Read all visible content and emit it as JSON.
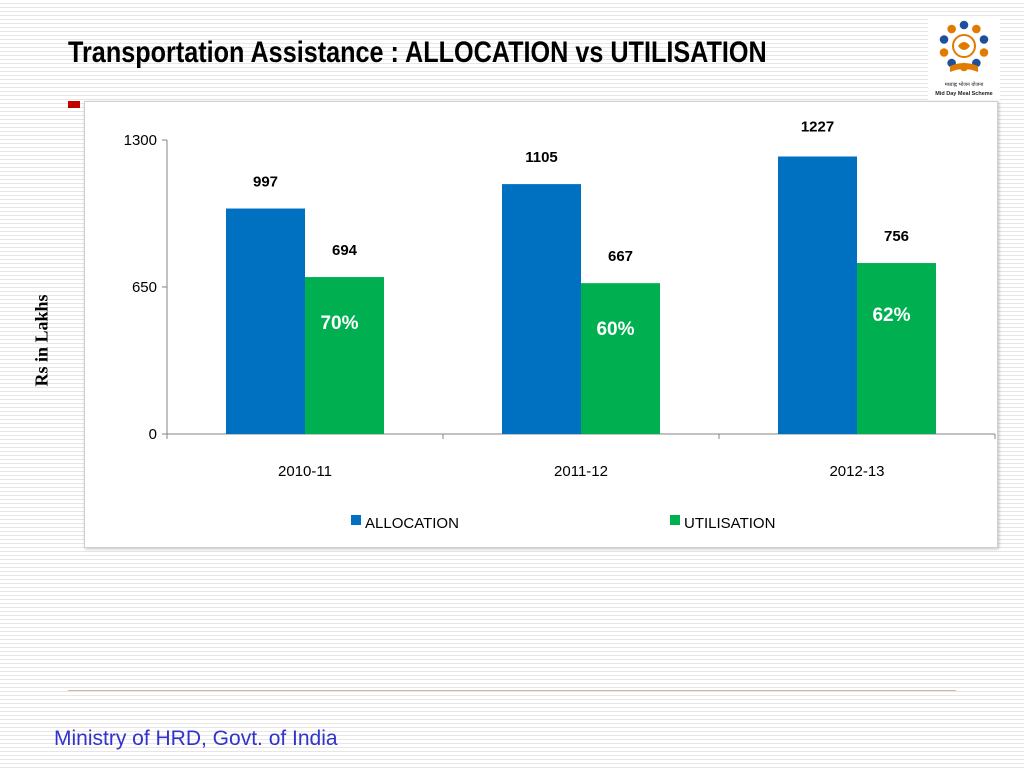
{
  "slide": {
    "title": "Transportation Assistance : ALLOCATION vs UTILISATION",
    "footer": "Ministry of HRD, Govt. of India",
    "logo": {
      "icon": "mid-day-meal-scheme-logo",
      "hindi_text": "मध्याह्न भोजन योजना",
      "english_text": "Mid Day Meal Scheme"
    }
  },
  "chart_data": {
    "type": "bar",
    "title": "",
    "xlabel": "",
    "ylabel": "Rs in Lakhs",
    "ylim": [
      0,
      1300
    ],
    "yticks": [
      0,
      650,
      1300
    ],
    "categories": [
      "2010-11",
      "2011-12",
      "2012-13"
    ],
    "series": [
      {
        "name": "ALLOCATION",
        "color": "#0070c0",
        "values": [
          997,
          1105,
          1227
        ]
      },
      {
        "name": "UTILISATION",
        "color": "#00b050",
        "values": [
          694,
          667,
          756
        ]
      }
    ],
    "annotations": [
      "70%",
      "60%",
      "62%"
    ],
    "legend": "bottom",
    "grid": false
  }
}
